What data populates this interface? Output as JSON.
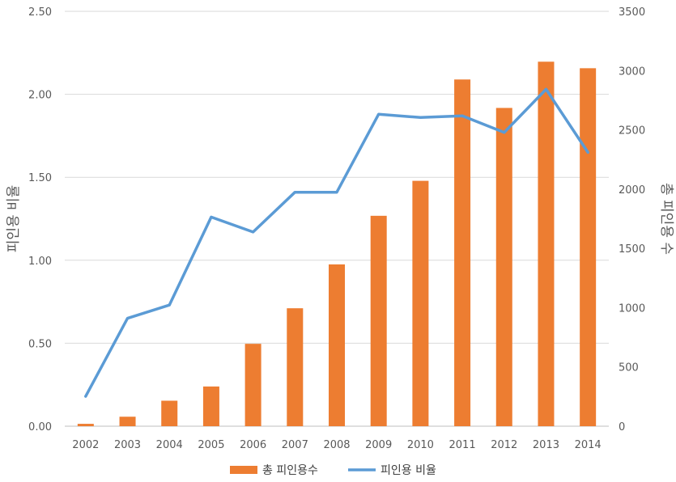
{
  "chart_data": {
    "type": "bar",
    "categories": [
      "2002",
      "2003",
      "2004",
      "2005",
      "2006",
      "2007",
      "2008",
      "2009",
      "2010",
      "2011",
      "2012",
      "2013",
      "2014"
    ],
    "series": [
      {
        "name": "총 피인용수",
        "type": "bar",
        "axis": "right",
        "color": "#ED7D31",
        "values": [
          20,
          80,
          215,
          335,
          695,
          995,
          1365,
          1775,
          2070,
          2925,
          2685,
          3075,
          3020
        ]
      },
      {
        "name": "피인용 비율",
        "type": "line",
        "axis": "left",
        "color": "#5B9BD5",
        "values": [
          0.18,
          0.65,
          0.73,
          1.26,
          1.17,
          1.41,
          1.41,
          1.88,
          1.86,
          1.87,
          1.77,
          2.03,
          1.65
        ]
      }
    ],
    "y_left": {
      "label": "피인용 비율",
      "ylim": [
        0,
        2.5
      ],
      "ticks": [
        "0.00",
        "0.50",
        "1.00",
        "1.50",
        "2.00",
        "2.50"
      ]
    },
    "y_right": {
      "label": "총 피인용 수",
      "ylim": [
        0,
        3500
      ],
      "ticks": [
        "0",
        "500",
        "1000",
        "1500",
        "2000",
        "2500",
        "3000",
        "3500"
      ]
    },
    "grid": true,
    "legend": "bottom"
  }
}
